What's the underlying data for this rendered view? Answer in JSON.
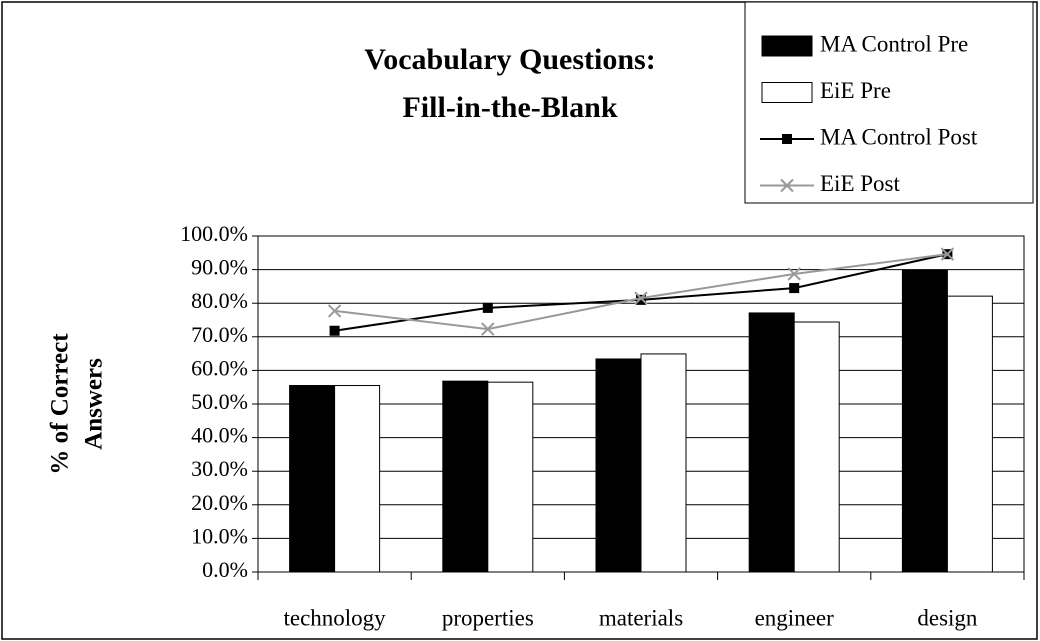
{
  "chart_data": {
    "type": "bar",
    "title": [
      "Vocabulary Questions:",
      "Fill-in-the-Blank"
    ],
    "y_label": [
      "% of Correct",
      "Answers"
    ],
    "categories": [
      "technology",
      "properties",
      "materials",
      "engineer",
      "design"
    ],
    "series": [
      {
        "name": "MA Control Pre",
        "type": "bar",
        "color": "#000000",
        "values": [
          55.5,
          56.8,
          63.4,
          77.1,
          89.9
        ]
      },
      {
        "name": "EiE Pre",
        "type": "bar",
        "color": "#ffffff",
        "values": [
          55.5,
          56.5,
          64.9,
          74.4,
          82.1
        ]
      },
      {
        "name": "MA Control Post",
        "type": "line",
        "marker": "square",
        "color": "#000000",
        "values": [
          71.8,
          78.6,
          81.0,
          84.5,
          94.6
        ]
      },
      {
        "name": "EiE Post",
        "type": "line",
        "marker": "x",
        "color": "#999999",
        "values": [
          77.7,
          72.3,
          81.5,
          88.7,
          94.6
        ]
      }
    ],
    "ylim": [
      0,
      100
    ],
    "yticks": [
      {
        "value": 0,
        "label": "0.0%"
      },
      {
        "value": 10,
        "label": "10.0%"
      },
      {
        "value": 20,
        "label": "20.0%"
      },
      {
        "value": 30,
        "label": "30.0%"
      },
      {
        "value": 40,
        "label": "40.0%"
      },
      {
        "value": 50,
        "label": "50.0%"
      },
      {
        "value": 60,
        "label": "60.0%"
      },
      {
        "value": 70,
        "label": "70.0%"
      },
      {
        "value": 80,
        "label": "80.0%"
      },
      {
        "value": 90,
        "label": "90.0%"
      },
      {
        "value": 100,
        "label": "100.0%"
      }
    ],
    "grid": true,
    "legend": "top-right"
  }
}
